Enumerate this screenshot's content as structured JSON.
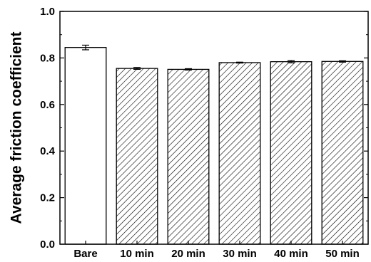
{
  "chart_data": {
    "type": "bar",
    "title": "",
    "xlabel": "",
    "ylabel": "Average friction coefficient",
    "categories": [
      "Bare",
      "10 min",
      "20 min",
      "30 min",
      "40 min",
      "50 min"
    ],
    "values": [
      0.845,
      0.755,
      0.751,
      0.78,
      0.784,
      0.785
    ],
    "errors": [
      0.01,
      0.004,
      0.003,
      0.002,
      0.005,
      0.003
    ],
    "ylim": [
      0.0,
      1.0
    ],
    "yticks": [
      "0.0",
      "0.2",
      "0.4",
      "0.6",
      "0.8",
      "1.0"
    ],
    "grid": false,
    "legend": "none",
    "bar_styles": [
      "open",
      "hatched",
      "hatched",
      "hatched",
      "hatched",
      "hatched"
    ],
    "colors": {
      "bar_fill": "#ffffff",
      "bar_stroke": "#000000",
      "hatch": "#000000"
    }
  }
}
